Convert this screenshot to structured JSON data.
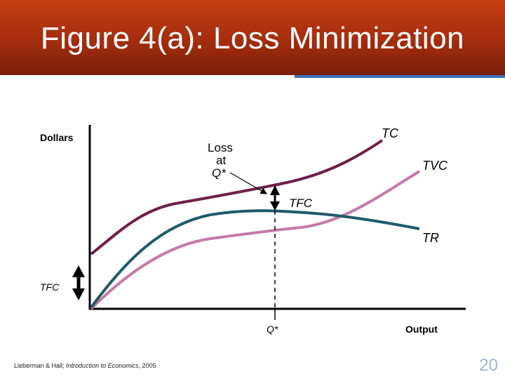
{
  "slide": {
    "title": "Figure 4(a):  Loss Minimization",
    "page_number": "20",
    "footer_authors": "Lieberman & Hall; ",
    "footer_book": "Introduction to Economics",
    "footer_year": ", 2005"
  },
  "diagram": {
    "y_axis_label": "Dollars",
    "x_axis_label": "Output",
    "q_star_label": "Q*",
    "tfc_left_label": "TFC",
    "tfc_gap_label": "TFC",
    "loss_label_line1": "Loss",
    "loss_label_line2": "at",
    "loss_label_line3": "Q*",
    "curves": [
      {
        "name": "TC",
        "color": "#6e1f4a"
      },
      {
        "name": "TVC",
        "color": "#c57aa8"
      },
      {
        "name": "TR",
        "color": "#1f5a6a"
      }
    ]
  }
}
